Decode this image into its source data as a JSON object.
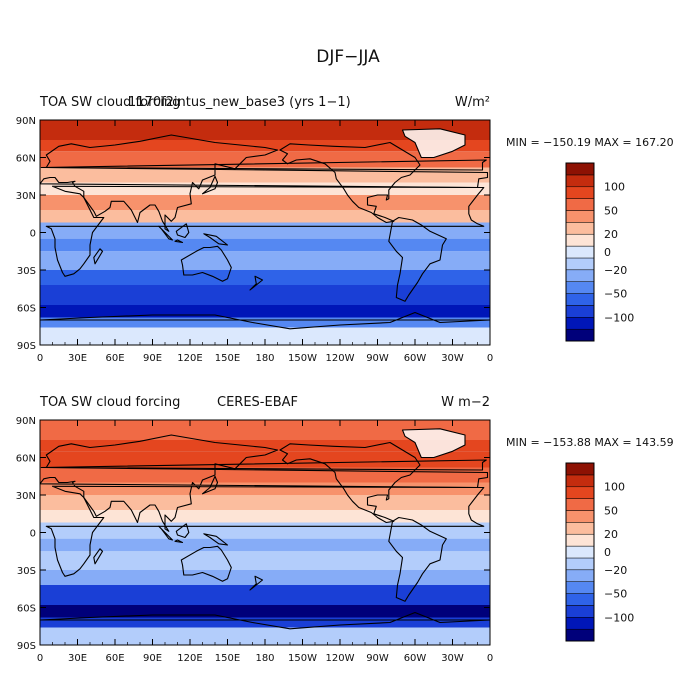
{
  "figure": {
    "title": "DJF−JJA"
  },
  "colors": {
    "ocean": "#d6e7fb",
    "coast": "#000000",
    "levels": [
      "#00007a",
      "#0016b8",
      "#1a3fd6",
      "#2f63e8",
      "#5588f2",
      "#86acf7",
      "#b3cdfb",
      "#dbe8fd",
      "#fde4d6",
      "#fbbd9e",
      "#f7926c",
      "#f06a45",
      "#e4461f",
      "#c42c0e",
      "#8d1103"
    ]
  },
  "chart_data": [
    {
      "type": "heatmap",
      "title_left": "TOA SW cloud forcing",
      "title_center": "1170f2intus_new_base3 (yrs 1−1)",
      "units": "W/m²",
      "stats": "MIN = −150.19 MAX = 167.20",
      "min": -150.19,
      "max": 167.2,
      "xticks": [
        "0",
        "30E",
        "60E",
        "90E",
        "120E",
        "150E",
        "180",
        "150W",
        "120W",
        "90W",
        "60W",
        "30W",
        "0"
      ],
      "yticks": [
        "90N",
        "60N",
        "30N",
        "0",
        "30S",
        "60S",
        "90S"
      ],
      "colorbar_labels": [
        "100",
        "50",
        "20",
        "0",
        "−20",
        "−50",
        "−100"
      ],
      "colorbar_levels": [
        -150,
        -120,
        -100,
        -80,
        -50,
        -30,
        -20,
        -10,
        0,
        10,
        20,
        30,
        50,
        80,
        100,
        120
      ]
    },
    {
      "type": "heatmap",
      "title_left": "TOA SW cloud forcing",
      "title_center": "CERES-EBAF",
      "units": "W m−2",
      "stats": "MIN = −153.88 MAX = 143.59",
      "min": -153.88,
      "max": 143.59,
      "xticks": [
        "0",
        "30E",
        "60E",
        "90E",
        "120E",
        "150E",
        "180",
        "150W",
        "120W",
        "90W",
        "60W",
        "30W",
        "0"
      ],
      "yticks": [
        "90N",
        "60N",
        "30N",
        "0",
        "30S",
        "60S",
        "90S"
      ],
      "colorbar_labels": [
        "100",
        "50",
        "20",
        "0",
        "−20",
        "−50",
        "−100"
      ],
      "colorbar_levels": [
        -150,
        -120,
        -100,
        -80,
        -50,
        -30,
        -20,
        -10,
        0,
        10,
        20,
        30,
        50,
        80,
        100,
        120
      ]
    }
  ]
}
